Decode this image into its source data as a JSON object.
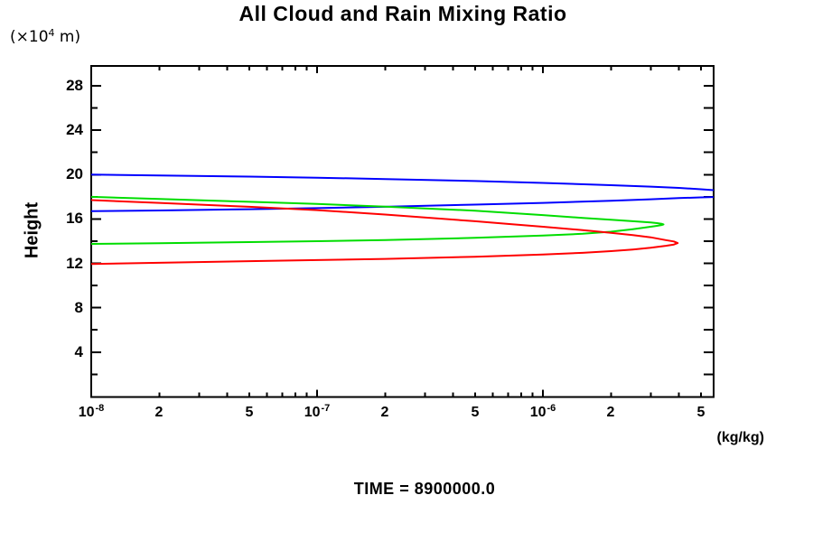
{
  "labels": {
    "title": "All Cloud and Rain Mixing Ratio",
    "y_unit_pre": "(×10",
    "y_unit_sup": "4",
    "y_unit_post": " m)",
    "y_axis": "Height",
    "x_unit": "(kg/kg)",
    "time": "TIME = 8900000.0"
  },
  "colors": {
    "axis": "#000000",
    "blue": "#0000ff",
    "green": "#00dd00",
    "red": "#ff0000"
  },
  "chart_data": {
    "type": "line",
    "title": "All Cloud and Rain Mixing Ratio",
    "xlabel": "(kg/kg)",
    "ylabel": "Height",
    "y_unit": "(×10^4 m)",
    "annotation": "TIME = 8900000.0",
    "x_scale": "log",
    "xlim": [
      1e-08,
      5.7e-06
    ],
    "ylim": [
      0,
      30
    ],
    "grid": false,
    "legend": "none",
    "x_minor_ticks": "2..9 each decade, inward",
    "y_minor_tick_step": 2,
    "x_ticks": [
      {
        "v": 1e-08,
        "base": "10",
        "sup": "-8"
      },
      {
        "v": 2e-08,
        "base": "2",
        "sup": ""
      },
      {
        "v": 5e-08,
        "base": "5",
        "sup": ""
      },
      {
        "v": 1e-07,
        "base": "10",
        "sup": "-7"
      },
      {
        "v": 2e-07,
        "base": "2",
        "sup": ""
      },
      {
        "v": 5e-07,
        "base": "5",
        "sup": ""
      },
      {
        "v": 1e-06,
        "base": "10",
        "sup": "-6"
      },
      {
        "v": 2e-06,
        "base": "2",
        "sup": ""
      },
      {
        "v": 5e-06,
        "base": "5",
        "sup": ""
      }
    ],
    "y_ticks": [
      {
        "v": 4,
        "label": "4"
      },
      {
        "v": 8,
        "label": "8"
      },
      {
        "v": 12,
        "label": "12"
      },
      {
        "v": 16,
        "label": "16"
      },
      {
        "v": 20,
        "label": "20"
      },
      {
        "v": 24,
        "label": "24"
      },
      {
        "v": 28,
        "label": "28"
      }
    ],
    "series": [
      {
        "name": "blue-curve",
        "color": "#0000ff",
        "points": [
          [
            1e-08,
            20.0
          ],
          [
            2e-08,
            19.93
          ],
          [
            5e-08,
            19.82
          ],
          [
            1e-07,
            19.72
          ],
          [
            2e-07,
            19.6
          ],
          [
            5e-07,
            19.42
          ],
          [
            1e-06,
            19.25
          ],
          [
            2e-06,
            19.05
          ],
          [
            3e-06,
            18.92
          ],
          [
            4e-06,
            18.8
          ],
          [
            5e-06,
            18.68
          ],
          [
            5.7e-06,
            18.6
          ],
          [
            6.2e-06,
            18.45
          ],
          [
            6.45e-06,
            18.28
          ],
          [
            6.2e-06,
            18.12
          ],
          [
            5.7e-06,
            17.98
          ],
          [
            5e-06,
            17.95
          ],
          [
            4e-06,
            17.88
          ],
          [
            3e-06,
            17.78
          ],
          [
            2e-06,
            17.65
          ],
          [
            1e-06,
            17.45
          ],
          [
            5e-07,
            17.3
          ],
          [
            2e-07,
            17.1
          ],
          [
            1e-07,
            16.98
          ],
          [
            5e-08,
            16.88
          ],
          [
            2e-08,
            16.77
          ],
          [
            1e-08,
            16.7
          ]
        ]
      },
      {
        "name": "green-curve",
        "color": "#00dd00",
        "points": [
          [
            1e-08,
            18.0
          ],
          [
            2e-08,
            17.8
          ],
          [
            5e-08,
            17.55
          ],
          [
            1e-07,
            17.35
          ],
          [
            2e-07,
            17.12
          ],
          [
            5e-07,
            16.75
          ],
          [
            1e-06,
            16.35
          ],
          [
            1.5e-06,
            16.1
          ],
          [
            2e-06,
            15.93
          ],
          [
            2.5e-06,
            15.8
          ],
          [
            3e-06,
            15.68
          ],
          [
            3.2e-06,
            15.63
          ],
          [
            3.35e-06,
            15.57
          ],
          [
            3.42e-06,
            15.51
          ],
          [
            3.35e-06,
            15.45
          ],
          [
            3.2e-06,
            15.38
          ],
          [
            3e-06,
            15.3
          ],
          [
            2.5e-06,
            15.08
          ],
          [
            2e-06,
            14.85
          ],
          [
            1.5e-06,
            14.67
          ],
          [
            1e-06,
            14.5
          ],
          [
            5e-07,
            14.3
          ],
          [
            2e-07,
            14.1
          ],
          [
            1e-07,
            14.0
          ],
          [
            5e-08,
            13.92
          ],
          [
            2e-08,
            13.82
          ],
          [
            1e-08,
            13.75
          ]
        ]
      },
      {
        "name": "red-curve",
        "color": "#ff0000",
        "points": [
          [
            1e-08,
            17.7
          ],
          [
            2e-08,
            17.45
          ],
          [
            5e-08,
            17.1
          ],
          [
            1e-07,
            16.8
          ],
          [
            2e-07,
            16.4
          ],
          [
            5e-07,
            15.8
          ],
          [
            7e-07,
            15.55
          ],
          [
            1e-06,
            15.3
          ],
          [
            1.5e-06,
            15.0
          ],
          [
            2e-06,
            14.75
          ],
          [
            2.5e-06,
            14.55
          ],
          [
            3e-06,
            14.35
          ],
          [
            3.5e-06,
            14.1
          ],
          [
            3.8e-06,
            13.97
          ],
          [
            3.95e-06,
            13.83
          ],
          [
            3.8e-06,
            13.7
          ],
          [
            3.5e-06,
            13.58
          ],
          [
            3e-06,
            13.4
          ],
          [
            2.5e-06,
            13.25
          ],
          [
            2e-06,
            13.1
          ],
          [
            1.5e-06,
            12.95
          ],
          [
            1e-06,
            12.8
          ],
          [
            5e-07,
            12.6
          ],
          [
            2e-07,
            12.4
          ],
          [
            1e-07,
            12.3
          ],
          [
            5e-08,
            12.2
          ],
          [
            2e-08,
            12.05
          ],
          [
            1e-08,
            11.95
          ]
        ]
      }
    ]
  }
}
